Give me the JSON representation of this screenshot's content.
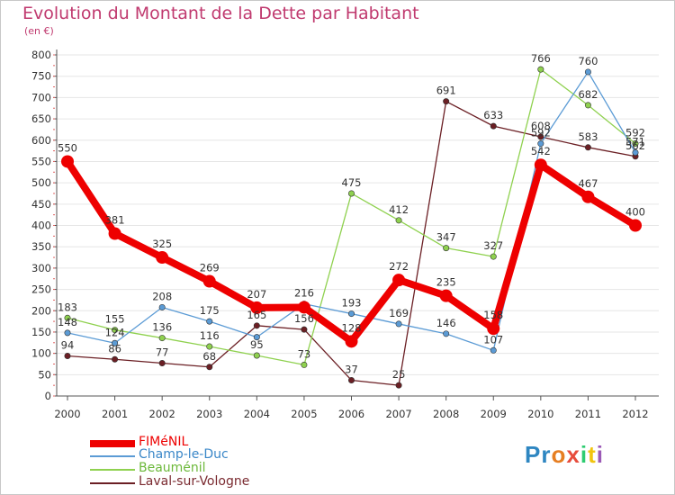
{
  "header": {
    "title": "Evolution du Montant de la Dette par Habitant",
    "subtitle": "(en €)"
  },
  "logo": {
    "text": "Proxiti",
    "letter_colors": [
      "#2e86c1",
      "#2e86c1",
      "#e67e22",
      "#e74c3c",
      "#2ecc71",
      "#f1c40f",
      "#9b59b6"
    ]
  },
  "chart_data": {
    "type": "line",
    "title": "Evolution du Montant de la Dette par Habitant",
    "subtitle": "(en €)",
    "xlabel": "",
    "ylabel": "",
    "x": [
      "2000",
      "2001",
      "2002",
      "2003",
      "2004",
      "2005",
      "2006",
      "2007",
      "2008",
      "2009",
      "2010",
      "2011",
      "2012"
    ],
    "ylim": [
      0,
      800
    ],
    "yticks": [
      0,
      50,
      100,
      150,
      200,
      250,
      300,
      350,
      400,
      450,
      500,
      550,
      600,
      650,
      700,
      750,
      800
    ],
    "grid": "horizontal",
    "legend_position": "bottom-left",
    "series": [
      {
        "name": "FIMéNIL",
        "color": "#ee0000",
        "values": [
          550,
          381,
          325,
          269,
          207,
          208,
          128,
          272,
          235,
          158,
          542,
          467,
          400
        ],
        "labels": [
          "550",
          "381",
          "325",
          "269",
          "207",
          "",
          "128",
          "272",
          "235",
          "158",
          "542",
          "467",
          "400"
        ]
      },
      {
        "name": "Champ-le-Duc",
        "color": "#5b9bd5",
        "values": [
          148,
          124,
          208,
          175,
          138,
          216,
          193,
          169,
          146,
          107,
          592,
          760,
          571
        ],
        "labels": [
          "148",
          "124",
          "208",
          "175",
          "",
          "216",
          "193",
          "169",
          "146",
          "107",
          "592",
          "760",
          "571"
        ]
      },
      {
        "name": "Beauménil",
        "color": "#8fd14f",
        "values": [
          183,
          155,
          136,
          116,
          95,
          73,
          475,
          412,
          347,
          327,
          766,
          682,
          592
        ],
        "labels": [
          "183",
          "155",
          "136",
          "116",
          "95",
          "73",
          "475",
          "412",
          "347",
          "327",
          "766",
          "682",
          "592"
        ]
      },
      {
        "name": "Laval-sur-Vologne",
        "color": "#6b1f24",
        "values": [
          94,
          86,
          77,
          68,
          165,
          156,
          37,
          25,
          691,
          633,
          608,
          583,
          562
        ],
        "labels": [
          "94",
          "86",
          "77",
          "68",
          "165",
          "156",
          "37",
          "25",
          "691",
          "633",
          "608",
          "583",
          "562"
        ]
      }
    ]
  }
}
